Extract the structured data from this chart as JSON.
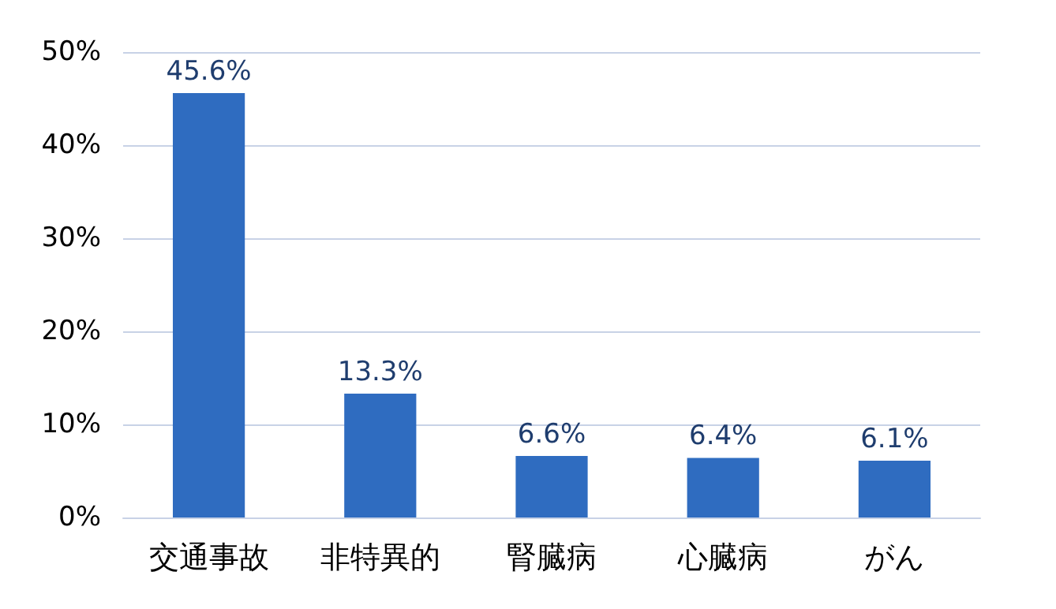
{
  "chart_data": {
    "type": "bar",
    "categories": [
      "交通事故",
      "非特異的",
      "腎臓病",
      "心臓病",
      "がん"
    ],
    "values": [
      45.6,
      13.3,
      6.6,
      6.4,
      6.1
    ],
    "value_labels": [
      "45.6%",
      "13.3%",
      "6.6%",
      "6.4%",
      "6.1%"
    ],
    "color": "#2f6cc0",
    "ylim": [
      0,
      50
    ],
    "yticks": [
      {
        "value": 0,
        "label": "0%"
      },
      {
        "value": 10,
        "label": "10%"
      },
      {
        "value": 20,
        "label": "20%"
      },
      {
        "value": 30,
        "label": "30%"
      },
      {
        "value": 40,
        "label": "40%"
      },
      {
        "value": 50,
        "label": "50%"
      }
    ],
    "grid": true
  }
}
